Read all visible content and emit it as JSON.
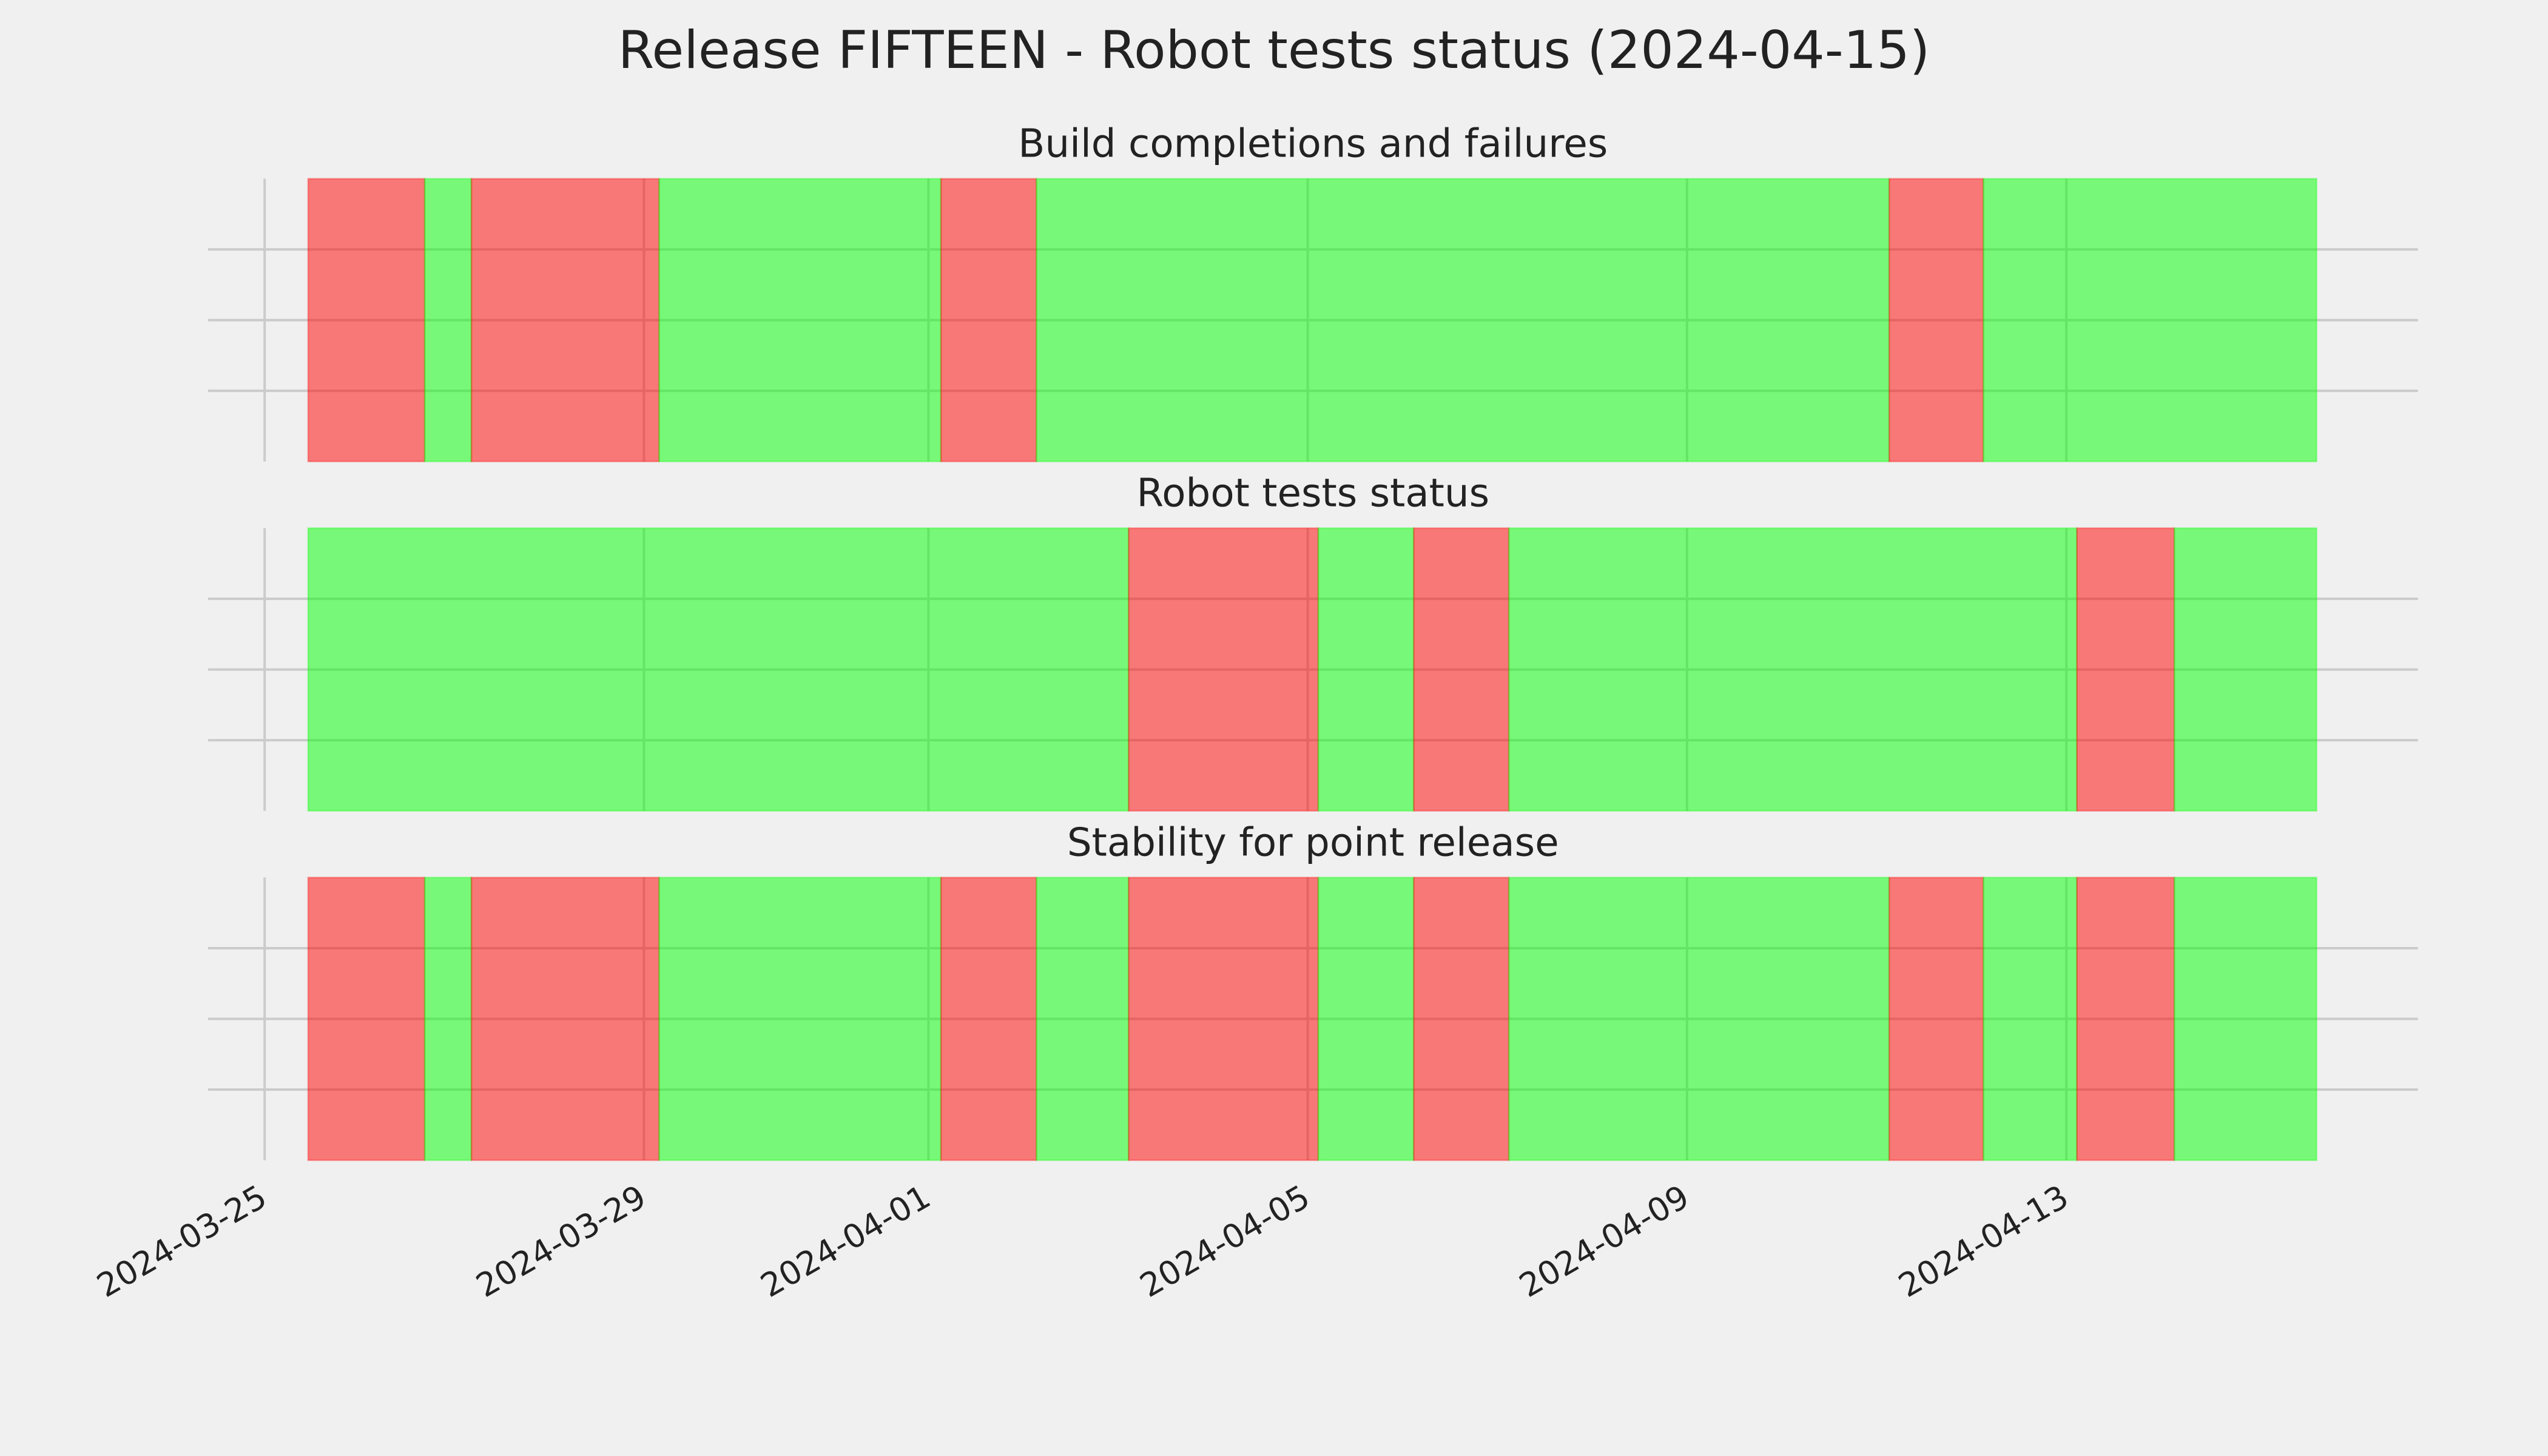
{
  "title": "Release FIFTEEN - Robot tests status (2024-04-15)",
  "xlim": [
    "2024-03-24T09:40",
    "2024-04-16T17:00"
  ],
  "xticks": [
    "2024-03-25",
    "2024-03-29",
    "2024-04-01",
    "2024-04-05",
    "2024-04-09",
    "2024-04-13"
  ],
  "grid": true,
  "span_alpha": 0.5,
  "chart_data": [
    {
      "type": "span",
      "title": "Build completions and failures",
      "ylim": [
        0,
        1
      ],
      "yticks": [
        0.25,
        0.5,
        0.75
      ],
      "spans": [
        {
          "start": "2024-03-25T11:00",
          "end": "2024-03-26T16:30",
          "color": "#ff0000"
        },
        {
          "start": "2024-03-26T16:30",
          "end": "2024-03-27T04:20",
          "color": "#00ff00"
        },
        {
          "start": "2024-03-27T04:20",
          "end": "2024-03-29T03:50",
          "color": "#ff0000"
        },
        {
          "start": "2024-03-29T03:50",
          "end": "2024-04-01T03:10",
          "color": "#00ff00"
        },
        {
          "start": "2024-04-01T03:10",
          "end": "2024-04-02T03:20",
          "color": "#ff0000"
        },
        {
          "start": "2024-04-02T03:20",
          "end": "2024-04-11T03:10",
          "color": "#00ff00"
        },
        {
          "start": "2024-04-11T03:10",
          "end": "2024-04-12T03:00",
          "color": "#ff0000"
        },
        {
          "start": "2024-04-12T03:00",
          "end": "2024-04-15T15:20",
          "color": "#00ff00"
        }
      ]
    },
    {
      "type": "span",
      "title": "Robot tests status",
      "ylim": [
        0,
        1
      ],
      "yticks": [
        0.25,
        0.5,
        0.75
      ],
      "spans": [
        {
          "start": "2024-03-25T11:00",
          "end": "2024-04-03T02:40",
          "color": "#00ff00"
        },
        {
          "start": "2024-04-03T02:40",
          "end": "2024-04-05T02:40",
          "color": "#ff0000"
        },
        {
          "start": "2024-04-05T02:40",
          "end": "2024-04-06T02:50",
          "color": "#00ff00"
        },
        {
          "start": "2024-04-06T02:50",
          "end": "2024-04-07T02:55",
          "color": "#ff0000"
        },
        {
          "start": "2024-04-07T02:55",
          "end": "2024-04-13T02:40",
          "color": "#00ff00"
        },
        {
          "start": "2024-04-13T02:40",
          "end": "2024-04-14T03:20",
          "color": "#ff0000"
        },
        {
          "start": "2024-04-14T03:20",
          "end": "2024-04-15T15:20",
          "color": "#00ff00"
        }
      ]
    },
    {
      "type": "span",
      "title": "Stability for point release",
      "ylim": [
        0,
        1
      ],
      "yticks": [
        0.25,
        0.5,
        0.75
      ],
      "spans": [
        {
          "start": "2024-03-25T11:00",
          "end": "2024-03-26T16:30",
          "color": "#ff0000"
        },
        {
          "start": "2024-03-26T16:30",
          "end": "2024-03-27T04:20",
          "color": "#00ff00"
        },
        {
          "start": "2024-03-27T04:20",
          "end": "2024-03-29T03:50",
          "color": "#ff0000"
        },
        {
          "start": "2024-03-29T03:50",
          "end": "2024-04-01T03:10",
          "color": "#00ff00"
        },
        {
          "start": "2024-04-01T03:10",
          "end": "2024-04-02T03:20",
          "color": "#ff0000"
        },
        {
          "start": "2024-04-02T03:20",
          "end": "2024-04-03T02:40",
          "color": "#00ff00"
        },
        {
          "start": "2024-04-03T02:40",
          "end": "2024-04-05T02:40",
          "color": "#ff0000"
        },
        {
          "start": "2024-04-05T02:40",
          "end": "2024-04-06T02:50",
          "color": "#00ff00"
        },
        {
          "start": "2024-04-06T02:50",
          "end": "2024-04-07T02:55",
          "color": "#ff0000"
        },
        {
          "start": "2024-04-07T02:55",
          "end": "2024-04-11T03:10",
          "color": "#00ff00"
        },
        {
          "start": "2024-04-11T03:10",
          "end": "2024-04-12T03:00",
          "color": "#ff0000"
        },
        {
          "start": "2024-04-12T03:00",
          "end": "2024-04-13T02:40",
          "color": "#00ff00"
        },
        {
          "start": "2024-04-13T02:40",
          "end": "2024-04-14T03:20",
          "color": "#ff0000"
        },
        {
          "start": "2024-04-14T03:20",
          "end": "2024-04-15T15:20",
          "color": "#00ff00"
        }
      ]
    }
  ]
}
